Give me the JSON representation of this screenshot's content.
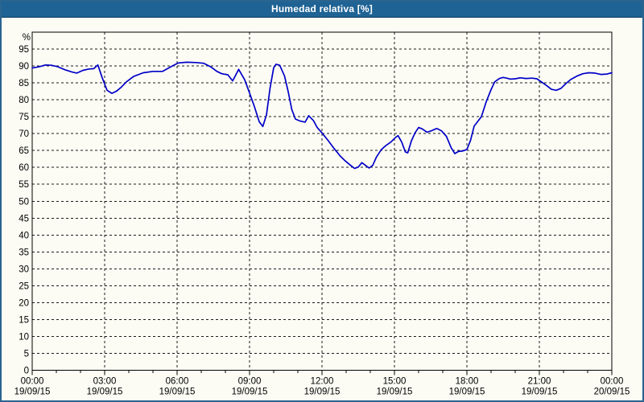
{
  "window": {
    "title": "Humedad relativa [%]"
  },
  "colors": {
    "titlebar_bg": "#1f6394",
    "titlebar_text": "#ffffff",
    "window_border": "#2a648f",
    "background": "#fcfcf5",
    "grid": "#1b1b1b",
    "axis": "#000000",
    "line": "#0000c8",
    "label_text": "#000000"
  },
  "chart_data": {
    "type": "line",
    "title": "Humedad relativa [%]",
    "xlabel": "",
    "ylabel": "%",
    "ylim": [
      0,
      100
    ],
    "ytick_step": 5,
    "yticks": [
      0,
      5,
      10,
      15,
      20,
      25,
      30,
      35,
      40,
      45,
      50,
      55,
      60,
      65,
      70,
      75,
      80,
      85,
      90,
      95
    ],
    "x_hours_range": [
      0,
      24
    ],
    "x_major_step_hours": 3,
    "x_minor_step_hours": 1,
    "grid": "dashed",
    "legend_position": "none",
    "xticks": [
      {
        "time": "00:00",
        "date": "19/09/15"
      },
      {
        "time": "03:00",
        "date": "19/09/15"
      },
      {
        "time": "06:00",
        "date": "19/09/15"
      },
      {
        "time": "09:00",
        "date": "19/09/15"
      },
      {
        "time": "12:00",
        "date": "19/09/15"
      },
      {
        "time": "15:00",
        "date": "19/09/15"
      },
      {
        "time": "18:00",
        "date": "19/09/15"
      },
      {
        "time": "21:00",
        "date": "19/09/15"
      },
      {
        "time": "00:00",
        "date": "20/09/15"
      }
    ],
    "series": [
      {
        "name": "Humedad relativa",
        "unit": "%",
        "color": "#0000c8",
        "points": [
          [
            0,
            89.4
          ],
          [
            0.3,
            89.8
          ],
          [
            0.55,
            90.3
          ],
          [
            0.8,
            90.2
          ],
          [
            1.05,
            89.8
          ],
          [
            1.35,
            88.9
          ],
          [
            1.65,
            88.2
          ],
          [
            1.85,
            87.9
          ],
          [
            2.1,
            88.7
          ],
          [
            2.35,
            89.1
          ],
          [
            2.55,
            89.2
          ],
          [
            2.72,
            90.3
          ],
          [
            2.9,
            86.5
          ],
          [
            3.1,
            82.8
          ],
          [
            3.3,
            81.9
          ],
          [
            3.5,
            82.6
          ],
          [
            3.7,
            83.8
          ],
          [
            3.9,
            85.3
          ],
          [
            4.2,
            86.9
          ],
          [
            4.6,
            88
          ],
          [
            5,
            88.4
          ],
          [
            5.4,
            88.4
          ],
          [
            5.75,
            89.8
          ],
          [
            6.05,
            90.9
          ],
          [
            6.4,
            91.1
          ],
          [
            6.8,
            91
          ],
          [
            7.1,
            90.8
          ],
          [
            7.4,
            89.7
          ],
          [
            7.65,
            88.4
          ],
          [
            7.85,
            87.7
          ],
          [
            8.1,
            87.4
          ],
          [
            8.3,
            85.6
          ],
          [
            8.55,
            89
          ],
          [
            8.8,
            85.9
          ],
          [
            9,
            82
          ],
          [
            9.2,
            78
          ],
          [
            9.4,
            73.5
          ],
          [
            9.55,
            72.1
          ],
          [
            9.7,
            75.5
          ],
          [
            9.85,
            83.5
          ],
          [
            10,
            89.5
          ],
          [
            10.1,
            90.5
          ],
          [
            10.25,
            90.2
          ],
          [
            10.45,
            87
          ],
          [
            10.6,
            82.4
          ],
          [
            10.75,
            77.1
          ],
          [
            10.9,
            74.3
          ],
          [
            11.1,
            73.7
          ],
          [
            11.3,
            73.4
          ],
          [
            11.45,
            75.3
          ],
          [
            11.65,
            73.8
          ],
          [
            11.8,
            71.8
          ],
          [
            12,
            70.2
          ],
          [
            12.25,
            68
          ],
          [
            12.5,
            65.6
          ],
          [
            12.75,
            63.4
          ],
          [
            12.95,
            62
          ],
          [
            13.15,
            60.8
          ],
          [
            13.35,
            59.7
          ],
          [
            13.5,
            60.1
          ],
          [
            13.65,
            61.4
          ],
          [
            13.8,
            60.6
          ],
          [
            13.95,
            59.8
          ],
          [
            14.1,
            60.6
          ],
          [
            14.25,
            63
          ],
          [
            14.45,
            65.2
          ],
          [
            14.65,
            66.5
          ],
          [
            14.85,
            67.5
          ],
          [
            15.05,
            68.9
          ],
          [
            15.15,
            69.4
          ],
          [
            15.3,
            67.5
          ],
          [
            15.45,
            64.6
          ],
          [
            15.55,
            64.3
          ],
          [
            15.7,
            67.8
          ],
          [
            15.85,
            70.2
          ],
          [
            16,
            71.8
          ],
          [
            16.15,
            71.4
          ],
          [
            16.35,
            70.4
          ],
          [
            16.55,
            70.9
          ],
          [
            16.75,
            71.5
          ],
          [
            16.95,
            70.8
          ],
          [
            17.15,
            69.2
          ],
          [
            17.35,
            65.8
          ],
          [
            17.5,
            64.1
          ],
          [
            17.65,
            64.7
          ],
          [
            17.85,
            64.9
          ],
          [
            18,
            65.3
          ],
          [
            18.15,
            68
          ],
          [
            18.3,
            72.2
          ],
          [
            18.6,
            75
          ],
          [
            18.8,
            79.4
          ],
          [
            19,
            83
          ],
          [
            19.15,
            85.3
          ],
          [
            19.35,
            86.3
          ],
          [
            19.5,
            86.6
          ],
          [
            19.65,
            86.4
          ],
          [
            19.8,
            86.1
          ],
          [
            20,
            86.2
          ],
          [
            20.2,
            86.5
          ],
          [
            20.45,
            86.3
          ],
          [
            20.7,
            86.4
          ],
          [
            20.9,
            86.2
          ],
          [
            21.1,
            85.2
          ],
          [
            21.3,
            84.2
          ],
          [
            21.5,
            83.1
          ],
          [
            21.7,
            82.8
          ],
          [
            21.9,
            83.4
          ],
          [
            22.1,
            84.8
          ],
          [
            22.3,
            86
          ],
          [
            22.55,
            87
          ],
          [
            22.8,
            87.7
          ],
          [
            23.05,
            88
          ],
          [
            23.3,
            87.9
          ],
          [
            23.55,
            87.5
          ],
          [
            23.8,
            87.6
          ],
          [
            24,
            88
          ]
        ]
      }
    ]
  }
}
